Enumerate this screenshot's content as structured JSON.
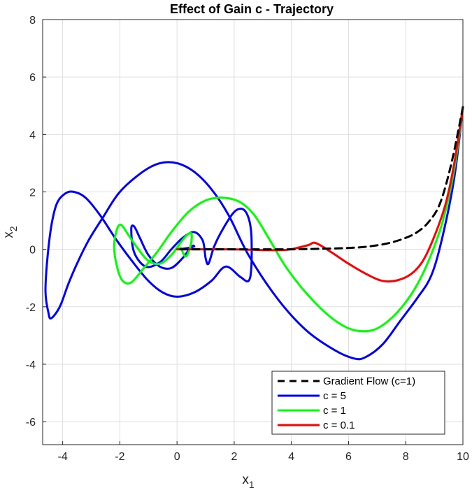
{
  "chart_data": {
    "type": "line",
    "title": "Effect of Gain c - Trajectory",
    "xlabel": "x",
    "xlabel_sub": "1",
    "ylabel": "x",
    "ylabel_sub": "2",
    "xlim": [
      -4.7,
      10
    ],
    "ylim": [
      -6.8,
      8
    ],
    "xticks": [
      -4,
      -2,
      0,
      2,
      4,
      6,
      8,
      10
    ],
    "yticks": [
      -6,
      -4,
      -2,
      0,
      2,
      4,
      6,
      8
    ],
    "grid": true,
    "legend_position": "bottom-right",
    "series": [
      {
        "name": "Gradient Flow (c=1)",
        "color": "#000000",
        "dash": true,
        "points": [
          [
            10,
            4.95
          ],
          [
            9.6,
            3.0
          ],
          [
            9.2,
            1.6
          ],
          [
            8.8,
            0.95
          ],
          [
            8.4,
            0.6
          ],
          [
            8.0,
            0.4
          ],
          [
            7.5,
            0.24
          ],
          [
            7.0,
            0.14
          ],
          [
            6.5,
            0.08
          ],
          [
            6.0,
            0.05
          ],
          [
            5.5,
            0.03
          ],
          [
            5.0,
            0.02
          ],
          [
            4.5,
            0.01
          ],
          [
            4.0,
            0.0
          ],
          [
            3.0,
            0.0
          ],
          [
            2.0,
            0.0
          ],
          [
            1.0,
            0.0
          ],
          [
            0,
            0
          ]
        ]
      },
      {
        "name": "c = 5",
        "color": "#0000ff",
        "dash": false,
        "points": [
          [
            10,
            4.95
          ],
          [
            9.7,
            2.5
          ],
          [
            9.3,
            0.5
          ],
          [
            8.9,
            -0.9
          ],
          [
            8.4,
            -1.7
          ],
          [
            7.8,
            -2.5
          ],
          [
            7.2,
            -3.3
          ],
          [
            6.6,
            -3.75
          ],
          [
            6.2,
            -3.8
          ],
          [
            5.5,
            -3.5
          ],
          [
            4.5,
            -2.8
          ],
          [
            3.5,
            -1.7
          ],
          [
            2.5,
            -0.2
          ],
          [
            1.8,
            1.2
          ],
          [
            1.2,
            2.1
          ],
          [
            0.6,
            2.7
          ],
          [
            0,
            3.0
          ],
          [
            -0.6,
            3.0
          ],
          [
            -1.2,
            2.7
          ],
          [
            -2.0,
            2.0
          ],
          [
            -2.6,
            1.1
          ],
          [
            -3.1,
            0.3
          ],
          [
            -3.5,
            -0.5
          ],
          [
            -3.8,
            -1.2
          ],
          [
            -4.1,
            -2.0
          ],
          [
            -4.4,
            -2.4
          ],
          [
            -4.5,
            -2.2
          ],
          [
            -4.6,
            -1.5
          ],
          [
            -4.55,
            -0.5
          ],
          [
            -4.4,
            0.8
          ],
          [
            -4.2,
            1.6
          ],
          [
            -3.9,
            1.95
          ],
          [
            -3.6,
            2.0
          ],
          [
            -3.2,
            1.8
          ],
          [
            -2.7,
            1.2
          ],
          [
            -2.1,
            0.3
          ],
          [
            -1.5,
            -0.5
          ],
          [
            -1.0,
            -1.1
          ],
          [
            -0.5,
            -1.5
          ],
          [
            0,
            -1.65
          ],
          [
            0.6,
            -1.5
          ],
          [
            1.2,
            -1.1
          ],
          [
            1.7,
            -0.6
          ],
          [
            2.2,
            -0.95
          ],
          [
            2.5,
            -1.1
          ],
          [
            2.6,
            -0.6
          ],
          [
            2.6,
            0.5
          ],
          [
            2.5,
            1.1
          ],
          [
            2.3,
            1.4
          ],
          [
            2.0,
            1.3
          ],
          [
            1.6,
            0.7
          ],
          [
            1.3,
            0.1
          ],
          [
            1.1,
            -0.5
          ],
          [
            1.0,
            -0.3
          ],
          [
            0.9,
            0.3
          ],
          [
            0.6,
            0.6
          ],
          [
            0.2,
            0.4
          ],
          [
            -0.2,
            0.0
          ],
          [
            -0.6,
            -0.45
          ],
          [
            -1.1,
            -0.6
          ],
          [
            -1.5,
            -0.1
          ],
          [
            -1.6,
            0.7
          ],
          [
            -1.5,
            0.8
          ],
          [
            -1.3,
            0.4
          ],
          [
            -1.0,
            -0.2
          ],
          [
            -0.6,
            -0.6
          ],
          [
            -0.2,
            -0.65
          ],
          [
            0.2,
            -0.3
          ],
          [
            0.5,
            0.1
          ],
          [
            0.6,
            0.1
          ],
          [
            0.4,
            0.05
          ],
          [
            0.2,
            0.02
          ],
          [
            0,
            0
          ]
        ]
      },
      {
        "name": "c = 1",
        "color": "#00ff00",
        "dash": false,
        "points": [
          [
            10,
            4.95
          ],
          [
            9.7,
            2.8
          ],
          [
            9.3,
            1.0
          ],
          [
            8.8,
            -0.4
          ],
          [
            8.3,
            -1.4
          ],
          [
            7.7,
            -2.2
          ],
          [
            7.1,
            -2.7
          ],
          [
            6.6,
            -2.85
          ],
          [
            6.0,
            -2.75
          ],
          [
            5.3,
            -2.3
          ],
          [
            4.5,
            -1.5
          ],
          [
            3.8,
            -0.6
          ],
          [
            3.2,
            0.4
          ],
          [
            2.7,
            1.2
          ],
          [
            2.2,
            1.65
          ],
          [
            1.6,
            1.8
          ],
          [
            1.0,
            1.7
          ],
          [
            0.4,
            1.3
          ],
          [
            -0.2,
            0.6
          ],
          [
            -0.7,
            -0.1
          ],
          [
            -1.2,
            -0.7
          ],
          [
            -1.6,
            -1.15
          ],
          [
            -1.9,
            -1.1
          ],
          [
            -2.1,
            -0.6
          ],
          [
            -2.2,
            0.1
          ],
          [
            -2.1,
            0.7
          ],
          [
            -1.95,
            0.85
          ],
          [
            -1.7,
            0.5
          ],
          [
            -1.35,
            0.0
          ],
          [
            -1.0,
            -0.4
          ],
          [
            -0.6,
            -0.5
          ],
          [
            -0.2,
            -0.2
          ],
          [
            0.1,
            0.2
          ],
          [
            0.35,
            0.5
          ],
          [
            0.5,
            0.55
          ],
          [
            0.5,
            0.25
          ],
          [
            0.4,
            -0.1
          ],
          [
            0.3,
            -0.25
          ],
          [
            0.2,
            -0.1
          ],
          [
            0.15,
            0.05
          ],
          [
            0,
            0
          ]
        ]
      },
      {
        "name": "c = 0.1",
        "color": "#ff0000",
        "dash": false,
        "points": [
          [
            10,
            4.95
          ],
          [
            9.7,
            3.0
          ],
          [
            9.4,
            1.6
          ],
          [
            9.0,
            0.45
          ],
          [
            8.6,
            -0.4
          ],
          [
            8.2,
            -0.85
          ],
          [
            7.7,
            -1.08
          ],
          [
            7.2,
            -1.1
          ],
          [
            6.7,
            -0.9
          ],
          [
            6.0,
            -0.5
          ],
          [
            5.4,
            -0.1
          ],
          [
            4.85,
            0.22
          ],
          [
            4.6,
            0.15
          ],
          [
            4.2,
            0.05
          ],
          [
            3.8,
            -0.02
          ],
          [
            3.2,
            -0.03
          ],
          [
            2.5,
            -0.01
          ],
          [
            1.8,
            0.0
          ],
          [
            1.0,
            0.0
          ],
          [
            0.3,
            0.0
          ],
          [
            0,
            0
          ]
        ]
      }
    ]
  }
}
